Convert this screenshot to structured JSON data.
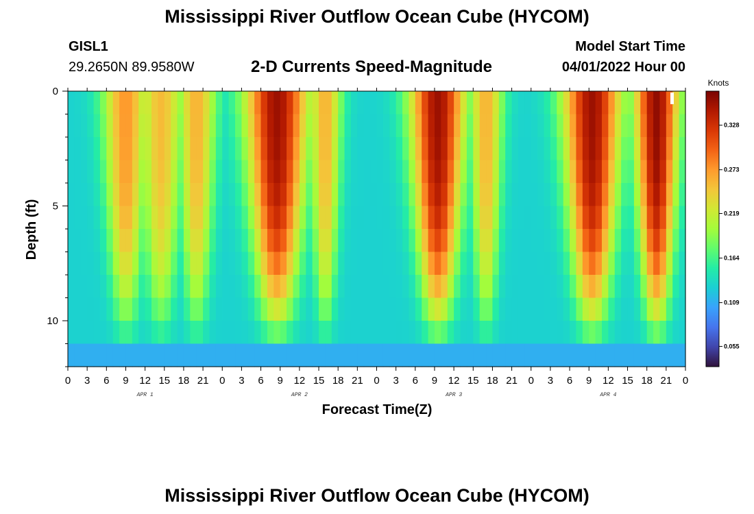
{
  "header": {
    "title": "Mississippi River Outflow Ocean Cube (HYCOM)",
    "station_name": "GISL1",
    "station_coords": "29.2650N  89.9580W",
    "subtitle": "2-D Currents Speed-Magnitude",
    "model_start_label": "Model Start Time",
    "model_start_value": "04/01/2022 Hour 00"
  },
  "footer": {
    "title": "Mississippi River Outflow Ocean Cube (HYCOM)"
  },
  "chart_data": {
    "type": "heatmap",
    "title": "2-D Currents Speed-Magnitude",
    "xlabel": "Forecast Time(Z)",
    "ylabel": "Depth (ft)",
    "x_hours_range": [
      0,
      96
    ],
    "x_tick_labels": [
      "0",
      "3",
      "6",
      "9",
      "12",
      "15",
      "18",
      "21",
      "0",
      "3",
      "6",
      "9",
      "12",
      "15",
      "18",
      "21",
      "0",
      "3",
      "6",
      "9",
      "12",
      "15",
      "18",
      "21",
      "0",
      "3",
      "6",
      "9",
      "12",
      "15",
      "18",
      "21",
      "0"
    ],
    "day_labels": [
      "APR 1",
      "APR 2",
      "APR 3",
      "APR 4"
    ],
    "y_range": [
      0,
      12
    ],
    "y_ticks": [
      "0",
      "5",
      "10"
    ],
    "colorbar": {
      "unit": "Knots",
      "range": [
        0.03,
        0.37
      ],
      "ticks": [
        "0.055",
        "0.109",
        "0.164",
        "0.219",
        "0.273",
        "0.328"
      ],
      "colors": [
        "#30123b",
        "#4145ab",
        "#4675ed",
        "#39a2fc",
        "#1bcfd4",
        "#24eca6",
        "#61fc6c",
        "#a4fc3b",
        "#d1e834",
        "#f3c63a",
        "#fe9b2d",
        "#f36315",
        "#d93806",
        "#b11901",
        "#7a0402"
      ]
    },
    "surface_peaks": [
      {
        "center_hour": 9.0,
        "half_width_hours": 3.5,
        "peak_knots": 0.275
      },
      {
        "center_hour": 14.5,
        "half_width_hours": 3.5,
        "peak_knots": 0.255
      },
      {
        "center_hour": 20.0,
        "half_width_hours": 3.0,
        "peak_knots": 0.26
      },
      {
        "center_hour": 32.5,
        "half_width_hours": 4.8,
        "peak_knots": 0.355
      },
      {
        "center_hour": 40.0,
        "half_width_hours": 2.5,
        "peak_knots": 0.26
      },
      {
        "center_hour": 57.5,
        "half_width_hours": 4.2,
        "peak_knots": 0.355
      },
      {
        "center_hour": 65.0,
        "half_width_hours": 2.6,
        "peak_knots": 0.26
      },
      {
        "center_hour": 81.5,
        "half_width_hours": 4.4,
        "peak_knots": 0.355
      },
      {
        "center_hour": 91.5,
        "half_width_hours": 3.4,
        "peak_knots": 0.36
      }
    ],
    "background_knots": 0.13,
    "near_bottom_knots": 0.11
  }
}
